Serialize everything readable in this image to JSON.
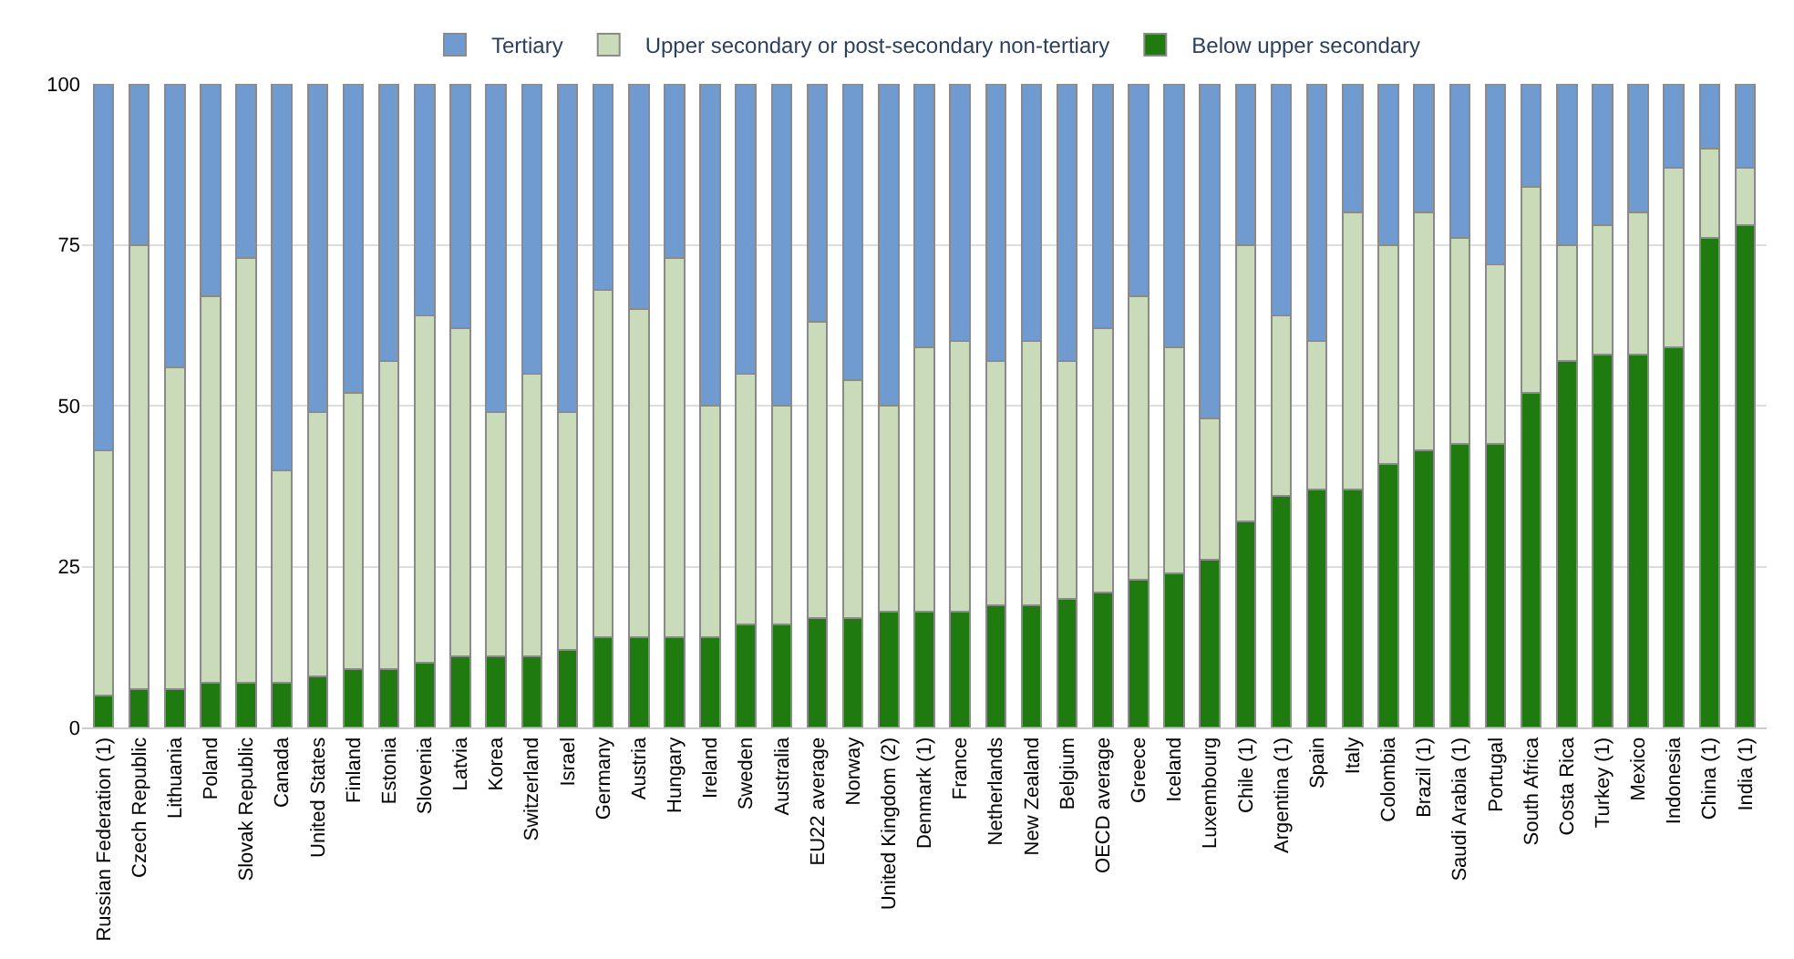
{
  "chart_data": {
    "type": "bar",
    "stacked": true,
    "categories": [
      "Russian Federation (1)",
      "Czech Republic",
      "Lithuania",
      "Poland",
      "Slovak Republic",
      "Canada",
      "United States",
      "Finland",
      "Estonia",
      "Slovenia",
      "Latvia",
      "Korea",
      "Switzerland",
      "Israel",
      "Germany",
      "Austria",
      "Hungary",
      "Ireland",
      "Sweden",
      "Australia",
      "EU22 average",
      "Norway",
      "United Kingdom (2)",
      "Denmark (1)",
      "France",
      "Netherlands",
      "New Zealand",
      "Belgium",
      "OECD average",
      "Greece",
      "Iceland",
      "Luxembourg",
      "Chile (1)",
      "Argentina (1)",
      "Spain",
      "Italy",
      "Colombia",
      "Brazil (1)",
      "Saudi Arabia (1)",
      "Portugal",
      "South Africa",
      "Costa Rica",
      "Turkey (1)",
      "Mexico",
      "Indonesia",
      "China (1)",
      "India (1)"
    ],
    "series": [
      {
        "name": "Below upper secondary",
        "color": "#1f7a0f",
        "values": [
          5,
          6,
          6,
          7,
          7,
          7,
          8,
          9,
          9,
          10,
          11,
          11,
          11,
          12,
          14,
          14,
          14,
          14,
          16,
          16,
          17,
          17,
          18,
          18,
          18,
          19,
          19,
          20,
          21,
          23,
          24,
          26,
          32,
          36,
          37,
          37,
          41,
          43,
          44,
          44,
          52,
          57,
          58,
          58,
          59,
          76,
          78
        ]
      },
      {
        "name": "Upper secondary or post-secondary non-tertiary",
        "color": "#c9dbb8",
        "values": [
          38,
          69,
          50,
          60,
          66,
          33,
          41,
          43,
          48,
          54,
          51,
          38,
          44,
          37,
          54,
          51,
          59,
          36,
          39,
          34,
          46,
          37,
          32,
          41,
          42,
          38,
          41,
          37,
          41,
          44,
          35,
          22,
          43,
          28,
          23,
          43,
          34,
          37,
          32,
          28,
          32,
          18,
          20,
          22,
          28,
          14,
          9
        ]
      },
      {
        "name": "Tertiary",
        "color": "#6f9bd1",
        "values": [
          57,
          25,
          44,
          33,
          27,
          60,
          51,
          48,
          43,
          36,
          38,
          51,
          45,
          51,
          32,
          35,
          27,
          50,
          45,
          50,
          37,
          46,
          50,
          41,
          40,
          43,
          40,
          43,
          38,
          33,
          41,
          52,
          25,
          36,
          40,
          20,
          25,
          20,
          24,
          28,
          16,
          25,
          22,
          20,
          13,
          10,
          13
        ]
      }
    ],
    "ylim": [
      0,
      100
    ],
    "yticks": [
      0,
      25,
      50,
      75,
      100
    ],
    "grid": "y",
    "legend": "top"
  }
}
